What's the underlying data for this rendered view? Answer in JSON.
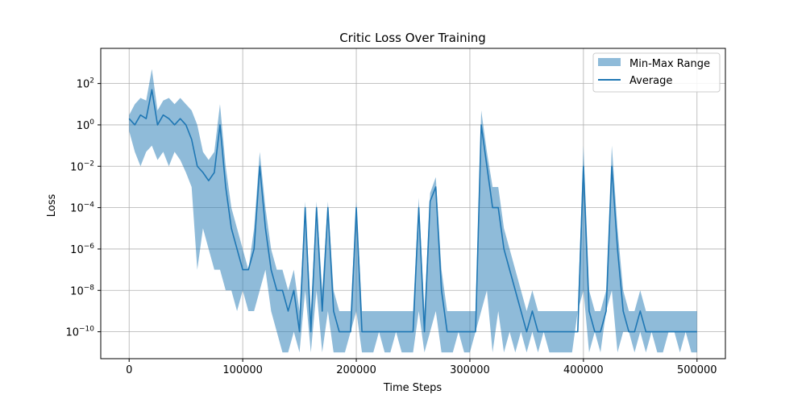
{
  "chart_data": {
    "type": "area",
    "title": "Critic Loss Over Training",
    "xlabel": "Time Steps",
    "ylabel": "Loss",
    "yscale": "log",
    "xlim": [
      -25000,
      525000
    ],
    "ylim": [
      5e-12,
      5000
    ],
    "grid": true,
    "legend_position": "top-right",
    "x_ticks": [
      {
        "value": 0,
        "label": "0"
      },
      {
        "value": 100000,
        "label": "100000"
      },
      {
        "value": 200000,
        "label": "200000"
      },
      {
        "value": 300000,
        "label": "300000"
      },
      {
        "value": 400000,
        "label": "400000"
      },
      {
        "value": 500000,
        "label": "500000"
      }
    ],
    "y_ticks": [
      {
        "value": 100.0,
        "base": "10",
        "exp": "2"
      },
      {
        "value": 1.0,
        "base": "10",
        "exp": "0"
      },
      {
        "value": 0.01,
        "base": "10",
        "exp": "−2"
      },
      {
        "value": 0.0001,
        "base": "10",
        "exp": "−4"
      },
      {
        "value": 1e-06,
        "base": "10",
        "exp": "−6"
      },
      {
        "value": 1e-08,
        "base": "10",
        "exp": "−8"
      },
      {
        "value": 1e-10,
        "base": "10",
        "exp": "−10"
      }
    ],
    "series": [
      {
        "name": "Min-Max Range",
        "kind": "band",
        "color": "#1f77b4",
        "opacity": 0.5,
        "x": [
          0,
          5000,
          10000,
          15000,
          20000,
          25000,
          30000,
          35000,
          40000,
          45000,
          50000,
          55000,
          60000,
          65000,
          70000,
          75000,
          80000,
          85000,
          90000,
          95000,
          100000,
          105000,
          110000,
          115000,
          120000,
          125000,
          130000,
          135000,
          140000,
          145000,
          150000,
          155000,
          160000,
          165000,
          170000,
          175000,
          180000,
          185000,
          190000,
          195000,
          200000,
          205000,
          210000,
          215000,
          220000,
          225000,
          230000,
          235000,
          240000,
          245000,
          250000,
          255000,
          260000,
          265000,
          270000,
          275000,
          280000,
          285000,
          290000,
          295000,
          300000,
          305000,
          310000,
          315000,
          320000,
          325000,
          330000,
          335000,
          340000,
          345000,
          350000,
          355000,
          360000,
          365000,
          370000,
          375000,
          380000,
          385000,
          390000,
          395000,
          400000,
          405000,
          410000,
          415000,
          420000,
          425000,
          430000,
          435000,
          440000,
          445000,
          450000,
          455000,
          460000,
          465000,
          470000,
          475000,
          480000,
          485000,
          490000,
          495000,
          500000
        ],
        "low": [
          0.5,
          0.05,
          0.01,
          0.05,
          0.1,
          0.02,
          0.05,
          0.01,
          0.05,
          0.02,
          0.005,
          0.001,
          1e-07,
          1e-05,
          1e-06,
          1e-07,
          1e-07,
          1e-08,
          1e-08,
          1e-09,
          1e-08,
          1e-09,
          1e-09,
          1e-08,
          1e-07,
          1e-09,
          1e-10,
          1e-11,
          1e-11,
          1e-10,
          1e-11,
          1e-08,
          1e-11,
          1e-08,
          1e-11,
          1e-09,
          1e-11,
          1e-11,
          1e-11,
          1e-10,
          1e-09,
          1e-11,
          1e-11,
          1e-11,
          1e-10,
          1e-11,
          1e-11,
          1e-10,
          1e-11,
          1e-11,
          1e-11,
          1e-09,
          1e-11,
          1e-10,
          1e-09,
          1e-11,
          1e-11,
          1e-11,
          1e-10,
          1e-11,
          1e-11,
          1e-10,
          1e-09,
          1e-08,
          1e-11,
          1e-09,
          1e-11,
          1e-10,
          1e-11,
          1e-10,
          1e-11,
          1e-10,
          1e-11,
          1e-10,
          1e-11,
          1e-11,
          1e-11,
          1e-11,
          1e-11,
          1e-09,
          1e-08,
          1e-11,
          1e-10,
          1e-11,
          1e-09,
          1e-08,
          1e-11,
          1e-10,
          1e-10,
          1e-11,
          1e-10,
          1e-11,
          1e-10,
          1e-11,
          1e-11,
          1e-10,
          1e-10,
          1e-11,
          1e-10,
          1e-11,
          1e-11
        ],
        "high": [
          3,
          10,
          20,
          15,
          500,
          5,
          15,
          20,
          10,
          20,
          10,
          5,
          1,
          0.05,
          0.02,
          0.05,
          10,
          0.01,
          0.0001,
          1e-05,
          1e-06,
          1e-07,
          1e-05,
          0.05,
          0.0001,
          1e-06,
          1e-07,
          1e-07,
          1e-08,
          1e-07,
          1e-09,
          0.0002,
          1e-09,
          0.0002,
          1e-08,
          0.0002,
          1e-08,
          1e-09,
          1e-09,
          1e-09,
          0.0002,
          1e-09,
          1e-09,
          1e-09,
          1e-09,
          1e-09,
          1e-09,
          1e-09,
          1e-09,
          1e-09,
          1e-09,
          0.0003,
          1e-09,
          0.0005,
          0.003,
          1e-07,
          1e-09,
          1e-09,
          1e-09,
          1e-09,
          1e-09,
          1e-09,
          5,
          0.05,
          0.001,
          0.001,
          1e-05,
          1e-06,
          1e-07,
          1e-08,
          1e-09,
          1e-08,
          1e-09,
          1e-09,
          1e-09,
          1e-09,
          1e-09,
          1e-09,
          1e-09,
          1e-09,
          0.1,
          1e-08,
          1e-09,
          1e-09,
          1e-08,
          0.1,
          1e-05,
          1e-08,
          1e-09,
          1e-09,
          1e-08,
          1e-09,
          1e-09,
          1e-09,
          1e-09,
          1e-09,
          1e-09,
          1e-09,
          1e-09,
          1e-09,
          1e-09
        ]
      },
      {
        "name": "Average",
        "kind": "line",
        "color": "#1f77b4",
        "x": [
          0,
          5000,
          10000,
          15000,
          20000,
          25000,
          30000,
          35000,
          40000,
          45000,
          50000,
          55000,
          60000,
          65000,
          70000,
          75000,
          80000,
          85000,
          90000,
          95000,
          100000,
          105000,
          110000,
          115000,
          120000,
          125000,
          130000,
          135000,
          140000,
          145000,
          150000,
          155000,
          160000,
          165000,
          170000,
          175000,
          180000,
          185000,
          190000,
          195000,
          200000,
          205000,
          210000,
          215000,
          220000,
          225000,
          230000,
          235000,
          240000,
          245000,
          250000,
          255000,
          260000,
          265000,
          270000,
          275000,
          280000,
          285000,
          290000,
          295000,
          300000,
          305000,
          310000,
          315000,
          320000,
          325000,
          330000,
          335000,
          340000,
          345000,
          350000,
          355000,
          360000,
          365000,
          370000,
          375000,
          380000,
          385000,
          390000,
          395000,
          400000,
          405000,
          410000,
          415000,
          420000,
          425000,
          430000,
          435000,
          440000,
          445000,
          450000,
          455000,
          460000,
          465000,
          470000,
          475000,
          480000,
          485000,
          490000,
          495000,
          500000
        ],
        "values": [
          2,
          1,
          3,
          2,
          50,
          1,
          3,
          2,
          1,
          2,
          1,
          0.2,
          0.01,
          0.005,
          0.002,
          0.005,
          1,
          0.001,
          1e-05,
          1e-06,
          1e-07,
          1e-07,
          1e-06,
          0.01,
          1e-05,
          1e-07,
          1e-08,
          1e-08,
          1e-09,
          1e-08,
          1e-10,
          0.0001,
          1e-10,
          0.0001,
          1e-09,
          0.0001,
          1e-09,
          1e-10,
          1e-10,
          1e-10,
          0.0001,
          1e-10,
          1e-10,
          1e-10,
          1e-10,
          1e-10,
          1e-10,
          1e-10,
          1e-10,
          1e-10,
          1e-10,
          0.0001,
          1e-10,
          0.0002,
          0.001,
          1e-08,
          1e-10,
          1e-10,
          1e-10,
          1e-10,
          1e-10,
          1e-10,
          1,
          0.01,
          0.0001,
          0.0001,
          1e-06,
          1e-07,
          1e-08,
          1e-09,
          1e-10,
          1e-09,
          1e-10,
          1e-10,
          1e-10,
          1e-10,
          1e-10,
          1e-10,
          1e-10,
          1e-10,
          0.01,
          1e-09,
          1e-10,
          1e-10,
          1e-09,
          0.01,
          1e-06,
          1e-09,
          1e-10,
          1e-10,
          1e-09,
          1e-10,
          1e-10,
          1e-10,
          1e-10,
          1e-10,
          1e-10,
          1e-10,
          1e-10,
          1e-10,
          1e-10
        ]
      }
    ]
  }
}
